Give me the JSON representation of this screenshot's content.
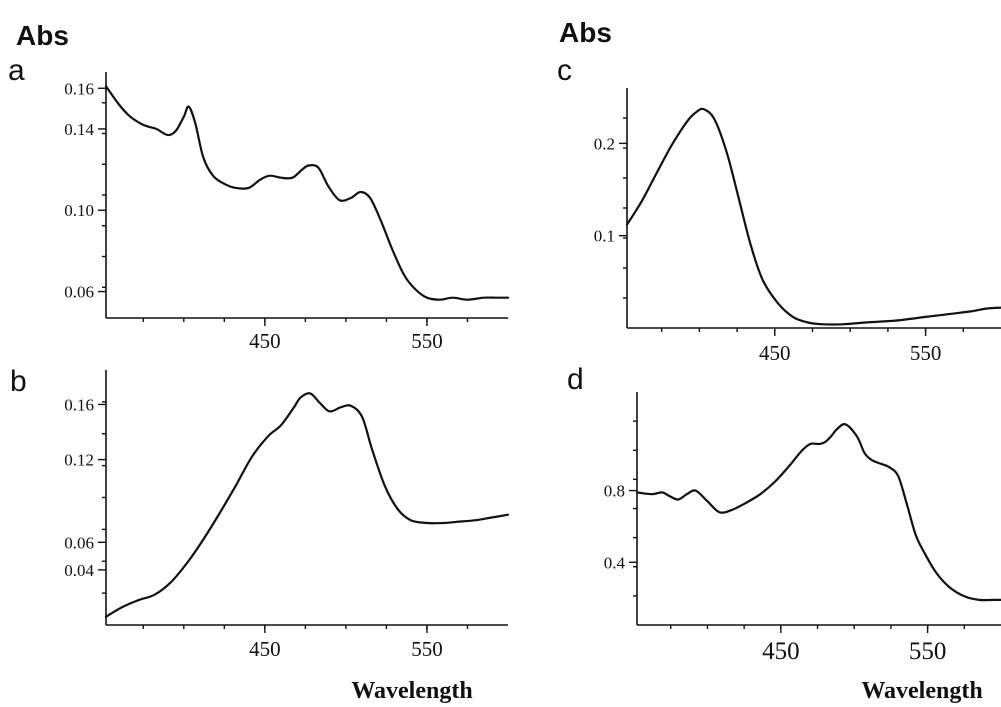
{
  "labels": {
    "abs_left": "Abs",
    "abs_right": "Abs",
    "wavelength_left": "Wavelength",
    "wavelength_right": "Wavelength"
  },
  "chart_data": [
    {
      "panel": "a",
      "type": "line",
      "xlabel": "",
      "ylabel": "Abs",
      "xlim": [
        352,
        600
      ],
      "ylim": [
        0.047,
        0.168
      ],
      "xticks": [
        450,
        550
      ],
      "yticks": [
        0.06,
        0.1,
        0.14,
        0.16
      ],
      "ytick_labels": [
        "0.06",
        "0.10",
        "0.14",
        "0.16"
      ],
      "grid": false,
      "series": [
        {
          "x": [
            352,
            360,
            367,
            375,
            383,
            390,
            395,
            400,
            403,
            407,
            412,
            418,
            425,
            432,
            440,
            447,
            453,
            460,
            467,
            473,
            477,
            483,
            489,
            496,
            503,
            509,
            515,
            522,
            529,
            536,
            543,
            550,
            558,
            566,
            575,
            585,
            593,
            600
          ],
          "y": [
            0.161,
            0.152,
            0.146,
            0.142,
            0.14,
            0.137,
            0.139,
            0.146,
            0.151,
            0.143,
            0.126,
            0.117,
            0.113,
            0.111,
            0.111,
            0.115,
            0.117,
            0.116,
            0.116,
            0.12,
            0.122,
            0.121,
            0.112,
            0.105,
            0.106,
            0.109,
            0.106,
            0.094,
            0.08,
            0.068,
            0.061,
            0.057,
            0.056,
            0.057,
            0.056,
            0.057,
            0.057,
            0.057
          ]
        }
      ]
    },
    {
      "panel": "b",
      "type": "line",
      "xlabel": "Wavelength",
      "ylabel": "",
      "xlim": [
        352,
        600
      ],
      "ylim": [
        0.0,
        0.185
      ],
      "xticks": [
        450,
        550
      ],
      "yticks": [
        0.04,
        0.06,
        0.12,
        0.16
      ],
      "ytick_labels": [
        "0.04",
        "0.06",
        "0.12",
        "0.16"
      ],
      "grid": false,
      "series": [
        {
          "x": [
            352,
            362,
            372,
            382,
            392,
            402,
            412,
            422,
            432,
            442,
            452,
            460,
            468,
            472,
            478,
            484,
            490,
            497,
            503,
            510,
            516,
            524,
            532,
            540,
            550,
            560,
            570,
            580,
            590,
            600
          ],
          "y": [
            0.006,
            0.013,
            0.018,
            0.022,
            0.031,
            0.045,
            0.062,
            0.081,
            0.101,
            0.122,
            0.137,
            0.145,
            0.158,
            0.165,
            0.168,
            0.161,
            0.155,
            0.158,
            0.159,
            0.151,
            0.128,
            0.101,
            0.084,
            0.076,
            0.074,
            0.074,
            0.075,
            0.076,
            0.078,
            0.08
          ]
        }
      ]
    },
    {
      "panel": "c",
      "type": "line",
      "xlabel": "",
      "ylabel": "Abs",
      "xlim": [
        352,
        600
      ],
      "ylim": [
        0.0,
        0.26
      ],
      "xticks": [
        450,
        550
      ],
      "yticks": [
        0.1,
        0.2
      ],
      "ytick_labels": [
        "0.1",
        "0.2"
      ],
      "grid": false,
      "series": [
        {
          "x": [
            352,
            362,
            372,
            382,
            392,
            398,
            403,
            410,
            418,
            426,
            434,
            442,
            452,
            462,
            472,
            482,
            495,
            510,
            530,
            550,
            565,
            580,
            590,
            600
          ],
          "y": [
            0.112,
            0.138,
            0.169,
            0.199,
            0.224,
            0.234,
            0.237,
            0.226,
            0.191,
            0.141,
            0.09,
            0.052,
            0.027,
            0.012,
            0.006,
            0.004,
            0.004,
            0.006,
            0.008,
            0.012,
            0.015,
            0.018,
            0.021,
            0.022
          ]
        }
      ]
    },
    {
      "panel": "d",
      "type": "line",
      "xlabel": "Wavelength",
      "ylabel": "",
      "xlim": [
        352,
        600
      ],
      "ylim": [
        0.05,
        1.35
      ],
      "xticks": [
        450,
        550
      ],
      "yticks": [
        0.4,
        0.8
      ],
      "ytick_labels": [
        "0.4",
        "0.8"
      ],
      "grid": false,
      "series": [
        {
          "x": [
            352,
            362,
            369,
            374,
            380,
            386,
            392,
            400,
            408,
            416,
            426,
            436,
            446,
            456,
            464,
            470,
            476,
            480,
            484,
            488,
            494,
            502,
            507,
            512,
            518,
            524,
            530,
            536,
            542,
            548,
            556,
            565,
            575,
            585,
            595,
            600
          ],
          "y": [
            0.79,
            0.78,
            0.79,
            0.77,
            0.75,
            0.78,
            0.8,
            0.74,
            0.68,
            0.69,
            0.73,
            0.78,
            0.85,
            0.94,
            1.02,
            1.06,
            1.06,
            1.07,
            1.1,
            1.14,
            1.17,
            1.1,
            1.01,
            0.97,
            0.95,
            0.93,
            0.88,
            0.72,
            0.55,
            0.45,
            0.34,
            0.26,
            0.21,
            0.19,
            0.19,
            0.19
          ]
        }
      ]
    }
  ]
}
